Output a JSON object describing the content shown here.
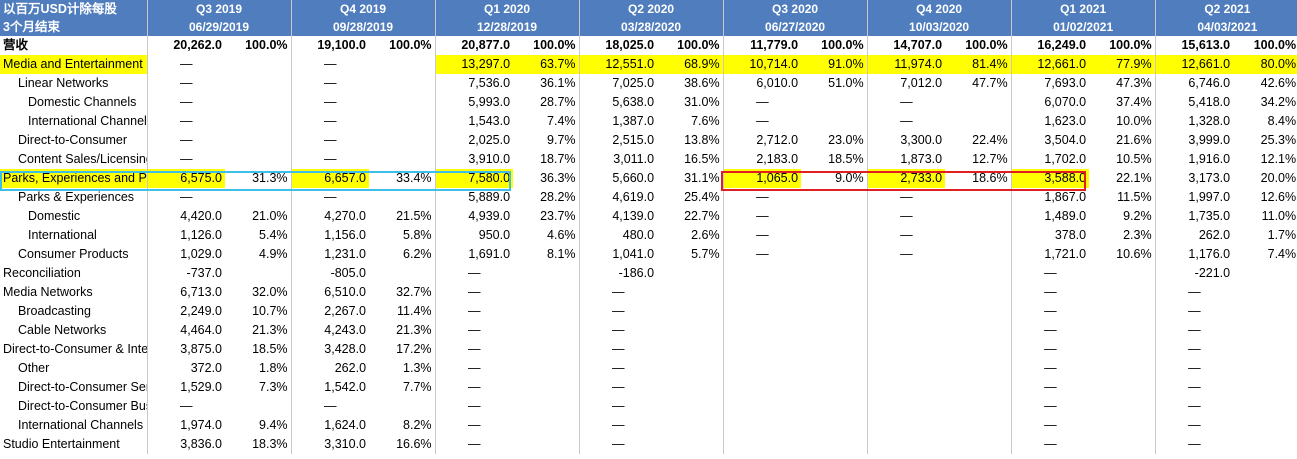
{
  "header": {
    "corner_line1": "以百万USD计除每股",
    "corner_line2": "3个月结束",
    "periods": [
      {
        "quarter": "Q3 2019",
        "date": "06/29/2019"
      },
      {
        "quarter": "Q4 2019",
        "date": "09/28/2019"
      },
      {
        "quarter": "Q1 2020",
        "date": "12/28/2019"
      },
      {
        "quarter": "Q2 2020",
        "date": "03/28/2020"
      },
      {
        "quarter": "Q3 2020",
        "date": "06/27/2020"
      },
      {
        "quarter": "Q4 2020",
        "date": "10/03/2020"
      },
      {
        "quarter": "Q1 2021",
        "date": "01/02/2021"
      },
      {
        "quarter": "Q2 2021",
        "date": "04/03/2021"
      }
    ]
  },
  "rows": [
    {
      "label": "营收",
      "cells": [
        "20,262.0",
        "100.0%",
        "19,100.0",
        "100.0%",
        "20,877.0",
        "100.0%",
        "18,025.0",
        "100.0%",
        "11,779.0",
        "100.0%",
        "14,707.0",
        "100.0%",
        "16,249.0",
        "100.0%",
        "15,613.0",
        "100.0%"
      ]
    },
    {
      "label": "Media and Entertainment Distribution",
      "cells": [
        "—",
        "",
        "—",
        "",
        "13,297.0",
        "63.7%",
        "12,551.0",
        "68.9%",
        "10,714.0",
        "91.0%",
        "11,974.0",
        "81.4%",
        "12,661.0",
        "77.9%",
        "12,661.0",
        "80.0%"
      ]
    },
    {
      "label": "Linear Networks",
      "cells": [
        "—",
        "",
        "—",
        "",
        "7,536.0",
        "36.1%",
        "7,025.0",
        "38.6%",
        "6,010.0",
        "51.0%",
        "7,012.0",
        "47.7%",
        "7,693.0",
        "47.3%",
        "6,746.0",
        "42.6%"
      ]
    },
    {
      "label": "Domestic Channels",
      "cells": [
        "—",
        "",
        "—",
        "",
        "5,993.0",
        "28.7%",
        "5,638.0",
        "31.0%",
        "—",
        "",
        "—",
        "",
        "6,070.0",
        "37.4%",
        "5,418.0",
        "34.2%"
      ]
    },
    {
      "label": "International Channels",
      "cells": [
        "—",
        "",
        "—",
        "",
        "1,543.0",
        "7.4%",
        "1,387.0",
        "7.6%",
        "—",
        "",
        "—",
        "",
        "1,623.0",
        "10.0%",
        "1,328.0",
        "8.4%"
      ]
    },
    {
      "label": "Direct-to-Consumer",
      "cells": [
        "—",
        "",
        "—",
        "",
        "2,025.0",
        "9.7%",
        "2,515.0",
        "13.8%",
        "2,712.0",
        "23.0%",
        "3,300.0",
        "22.4%",
        "3,504.0",
        "21.6%",
        "3,999.0",
        "25.3%"
      ]
    },
    {
      "label": "Content Sales/Licensing",
      "cells": [
        "—",
        "",
        "—",
        "",
        "3,910.0",
        "18.7%",
        "3,011.0",
        "16.5%",
        "2,183.0",
        "18.5%",
        "1,873.0",
        "12.7%",
        "1,702.0",
        "10.5%",
        "1,916.0",
        "12.1%"
      ]
    },
    {
      "label": "Parks, Experiences and Products",
      "cells": [
        "6,575.0",
        "31.3%",
        "6,657.0",
        "33.4%",
        "7,580.0",
        "36.3%",
        "5,660.0",
        "31.1%",
        "1,065.0",
        "9.0%",
        "2,733.0",
        "18.6%",
        "3,588.0",
        "22.1%",
        "3,173.0",
        "20.0%"
      ]
    },
    {
      "label": "Parks & Experiences",
      "cells": [
        "—",
        "",
        "—",
        "",
        "5,889.0",
        "28.2%",
        "4,619.0",
        "25.4%",
        "—",
        "",
        "—",
        "",
        "1,867.0",
        "11.5%",
        "1,997.0",
        "12.6%"
      ]
    },
    {
      "label": "Domestic",
      "cells": [
        "4,420.0",
        "21.0%",
        "4,270.0",
        "21.5%",
        "4,939.0",
        "23.7%",
        "4,139.0",
        "22.7%",
        "—",
        "",
        "—",
        "",
        "1,489.0",
        "9.2%",
        "1,735.0",
        "11.0%"
      ]
    },
    {
      "label": "International",
      "cells": [
        "1,126.0",
        "5.4%",
        "1,156.0",
        "5.8%",
        "950.0",
        "4.6%",
        "480.0",
        "2.6%",
        "—",
        "",
        "—",
        "",
        "378.0",
        "2.3%",
        "262.0",
        "1.7%"
      ]
    },
    {
      "label": "Consumer Products",
      "cells": [
        "1,029.0",
        "4.9%",
        "1,231.0",
        "6.2%",
        "1,691.0",
        "8.1%",
        "1,041.0",
        "5.7%",
        "—",
        "",
        "—",
        "",
        "1,721.0",
        "10.6%",
        "1,176.0",
        "7.4%"
      ]
    },
    {
      "label": "Reconciliation",
      "cells": [
        "-737.0",
        "",
        "-805.0",
        "",
        "—",
        "",
        "-186.0",
        "",
        "",
        "",
        "",
        "",
        "—",
        "",
        "-221.0",
        ""
      ]
    },
    {
      "label": "Media Networks",
      "cells": [
        "6,713.0",
        "32.0%",
        "6,510.0",
        "32.7%",
        "—",
        "",
        "—",
        "",
        "",
        "",
        "",
        "",
        "—",
        "",
        "—",
        ""
      ]
    },
    {
      "label": "Broadcasting",
      "cells": [
        "2,249.0",
        "10.7%",
        "2,267.0",
        "11.4%",
        "—",
        "",
        "—",
        "",
        "",
        "",
        "",
        "",
        "—",
        "",
        "—",
        ""
      ]
    },
    {
      "label": "Cable Networks",
      "cells": [
        "4,464.0",
        "21.3%",
        "4,243.0",
        "21.3%",
        "—",
        "",
        "—",
        "",
        "",
        "",
        "",
        "",
        "—",
        "",
        "—",
        ""
      ]
    },
    {
      "label": "Direct-to-Consumer & International",
      "cells": [
        "3,875.0",
        "18.5%",
        "3,428.0",
        "17.2%",
        "—",
        "",
        "—",
        "",
        "",
        "",
        "",
        "",
        "—",
        "",
        "—",
        ""
      ]
    },
    {
      "label": "Other",
      "cells": [
        "372.0",
        "1.8%",
        "262.0",
        "1.3%",
        "—",
        "",
        "—",
        "",
        "",
        "",
        "",
        "",
        "—",
        "",
        "—",
        ""
      ]
    },
    {
      "label": "Direct-to-Consumer Services",
      "cells": [
        "1,529.0",
        "7.3%",
        "1,542.0",
        "7.7%",
        "—",
        "",
        "—",
        "",
        "",
        "",
        "",
        "",
        "—",
        "",
        "—",
        ""
      ]
    },
    {
      "label": "Direct-to-Consumer Businesses",
      "cells": [
        "—",
        "",
        "—",
        "",
        "—",
        "",
        "—",
        "",
        "",
        "",
        "",
        "",
        "—",
        "",
        "—",
        ""
      ]
    },
    {
      "label": "International Channels",
      "cells": [
        "1,974.0",
        "9.4%",
        "1,624.0",
        "8.2%",
        "—",
        "",
        "—",
        "",
        "",
        "",
        "",
        "",
        "—",
        "",
        "—",
        ""
      ]
    },
    {
      "label": "Studio Entertainment",
      "cells": [
        "3,836.0",
        "18.3%",
        "3,310.0",
        "16.6%",
        "—",
        "",
        "—",
        "",
        "",
        "",
        "",
        "",
        "—",
        "",
        "—",
        ""
      ]
    }
  ],
  "colors": {
    "header_bg": "#4f7dbd",
    "highlight": "#ffff00",
    "cyan_box": "#3fbee8",
    "red_box": "#e02020"
  }
}
